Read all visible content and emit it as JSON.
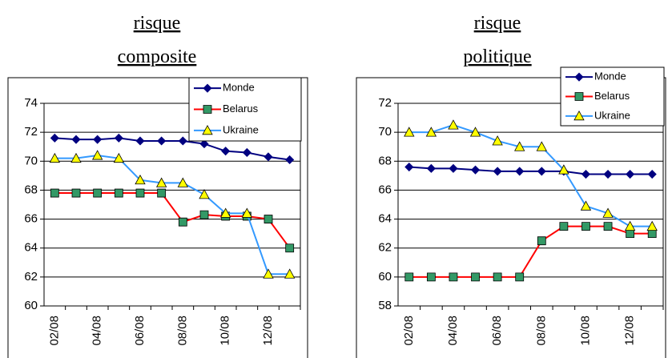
{
  "chart_data": [
    {
      "type": "line",
      "title": "risque composite",
      "categories": [
        "02/08",
        null,
        "04/08",
        null,
        "06/08",
        null,
        "08/08",
        null,
        "10/08",
        null,
        "12/08",
        null
      ],
      "ylim": [
        60,
        74
      ],
      "yticks": [
        60,
        62,
        64,
        66,
        68,
        70,
        72,
        74
      ],
      "grid": true,
      "legend": "upper right",
      "series": [
        {
          "name": "Monde",
          "color": "#000080",
          "marker": "diamond",
          "marker_color": "#000080",
          "values": [
            71.6,
            71.5,
            71.5,
            71.6,
            71.4,
            71.4,
            71.4,
            71.2,
            70.7,
            70.6,
            70.3,
            70.1
          ]
        },
        {
          "name": "Belarus",
          "color": "#ff0000",
          "marker": "square",
          "marker_color": "#339966",
          "values": [
            67.8,
            67.8,
            67.8,
            67.8,
            67.8,
            67.8,
            65.8,
            66.3,
            66.2,
            66.2,
            66.0,
            64.0
          ]
        },
        {
          "name": "Ukraine",
          "color": "#3399ff",
          "marker": "triangle",
          "marker_color": "#ffff00",
          "values": [
            70.2,
            70.2,
            70.4,
            70.2,
            68.7,
            68.5,
            68.5,
            67.7,
            66.4,
            66.4,
            62.2,
            62.2
          ]
        }
      ]
    },
    {
      "type": "line",
      "title": "risque politique",
      "categories": [
        "02/08",
        null,
        "04/08",
        null,
        "06/08",
        null,
        "08/08",
        null,
        "10/08",
        null,
        "12/08",
        null
      ],
      "ylim": [
        58,
        72
      ],
      "yticks": [
        58,
        60,
        62,
        64,
        66,
        68,
        70,
        72
      ],
      "grid": true,
      "legend": "upper right",
      "series": [
        {
          "name": "Monde",
          "color": "#000080",
          "marker": "diamond",
          "marker_color": "#000080",
          "values": [
            67.6,
            67.5,
            67.5,
            67.4,
            67.3,
            67.3,
            67.3,
            67.3,
            67.1,
            67.1,
            67.1,
            67.1
          ]
        },
        {
          "name": "Belarus",
          "color": "#ff0000",
          "marker": "square",
          "marker_color": "#339966",
          "values": [
            60,
            60,
            60,
            60,
            60,
            60,
            62.5,
            63.5,
            63.5,
            63.5,
            63,
            63
          ]
        },
        {
          "name": "Ukraine",
          "color": "#3399ff",
          "marker": "triangle",
          "marker_color": "#ffff00",
          "values": [
            70,
            70,
            70.5,
            70,
            69.4,
            69,
            69,
            67.4,
            64.9,
            64.4,
            63.5,
            63.5
          ]
        }
      ]
    }
  ]
}
